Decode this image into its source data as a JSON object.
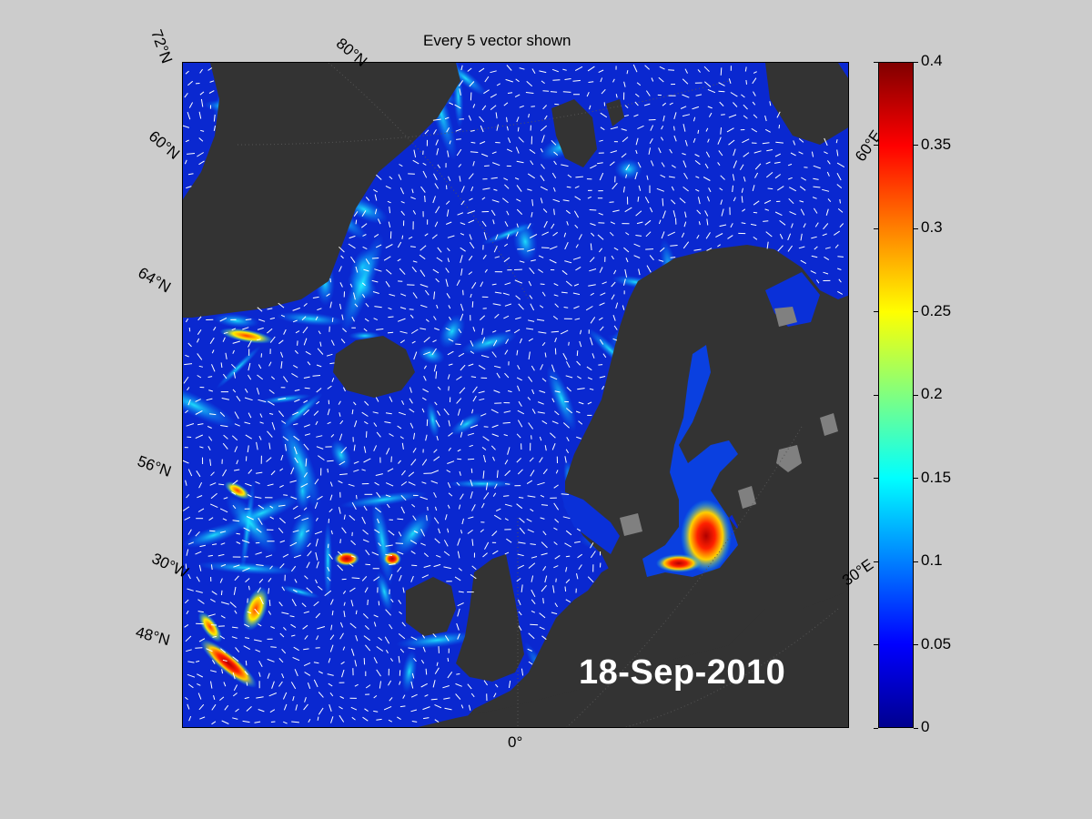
{
  "title": "Every 5 vector shown",
  "date": "18-Sep-2010",
  "lat_labels": [
    "72°N",
    "60°N",
    "64°N",
    "56°N",
    "48°N"
  ],
  "lon_labels": [
    "80°N",
    "60°E",
    "30°E",
    "30°W",
    "0°"
  ],
  "colorbar": {
    "ticks": [
      "0.4",
      "0.35",
      "0.3",
      "0.25",
      "0.2",
      "0.15",
      "0.1",
      "0.05",
      "0"
    ],
    "min": 0,
    "max": 0.4,
    "colormap": "jet"
  },
  "colors": {
    "background": "#cccccc",
    "land": "#333333",
    "lakes": "#808080",
    "ocean_low": "#0a24c8",
    "vectors": "#ffffff"
  }
}
